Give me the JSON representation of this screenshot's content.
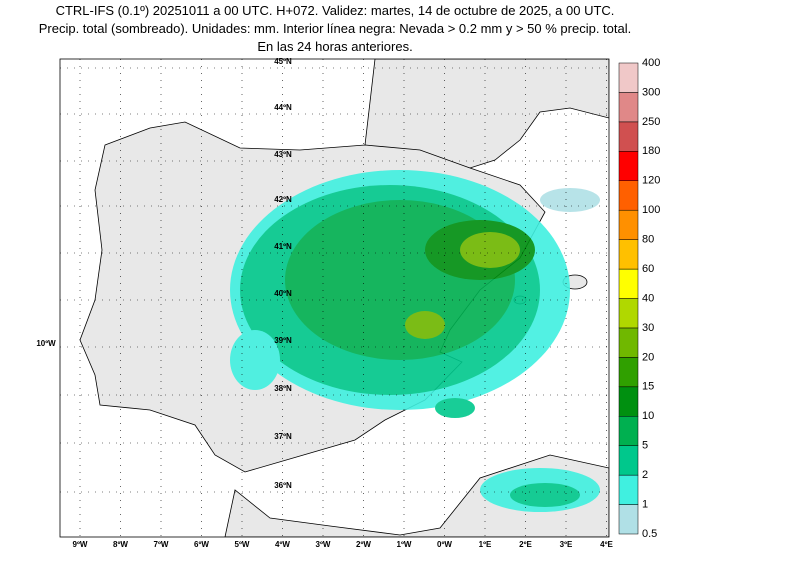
{
  "header": {
    "lines": [
      "CTRL-IFS (0.1º) 20251011 a 00 UTC. H+072. Validez: martes, 14 de octubre de 2025, a 00 UTC.",
      "Precip. total (sombreado). Unidades: mm. Interior línea negra: Nevada > 0.2 mm y > 50 % precip. total.",
      "En las 24 horas anteriores."
    ]
  },
  "map": {
    "lat_labels": [
      "45ºN",
      "44ºN",
      "43ºN",
      "42ºN",
      "41ºN",
      "40ºN",
      "39ºN",
      "38ºN",
      "37ºN",
      "36ºN"
    ],
    "lon_labels": [
      "9ºW",
      "8ºW",
      "7ºW",
      "6ºW",
      "5ºW",
      "4ºW",
      "3ºW",
      "2ºW",
      "1ºW",
      "0ºW",
      "1ºE",
      "2ºE",
      "3ºE",
      "4ºE"
    ],
    "side_label": "10ºW"
  },
  "colorbar": {
    "levels": [
      "0.5",
      "1",
      "2",
      "5",
      "10",
      "15",
      "20",
      "30",
      "40",
      "60",
      "80",
      "100",
      "120",
      "180",
      "250",
      "300",
      "400"
    ],
    "colors": [
      "#b0e0e6",
      "#40f0e0",
      "#00c88c",
      "#00b050",
      "#009010",
      "#30a000",
      "#70b800",
      "#b0d800",
      "#ffff00",
      "#ffc000",
      "#ff9000",
      "#ff6000",
      "#ff0000",
      "#d05050",
      "#e08888",
      "#f0c8c8"
    ]
  }
}
